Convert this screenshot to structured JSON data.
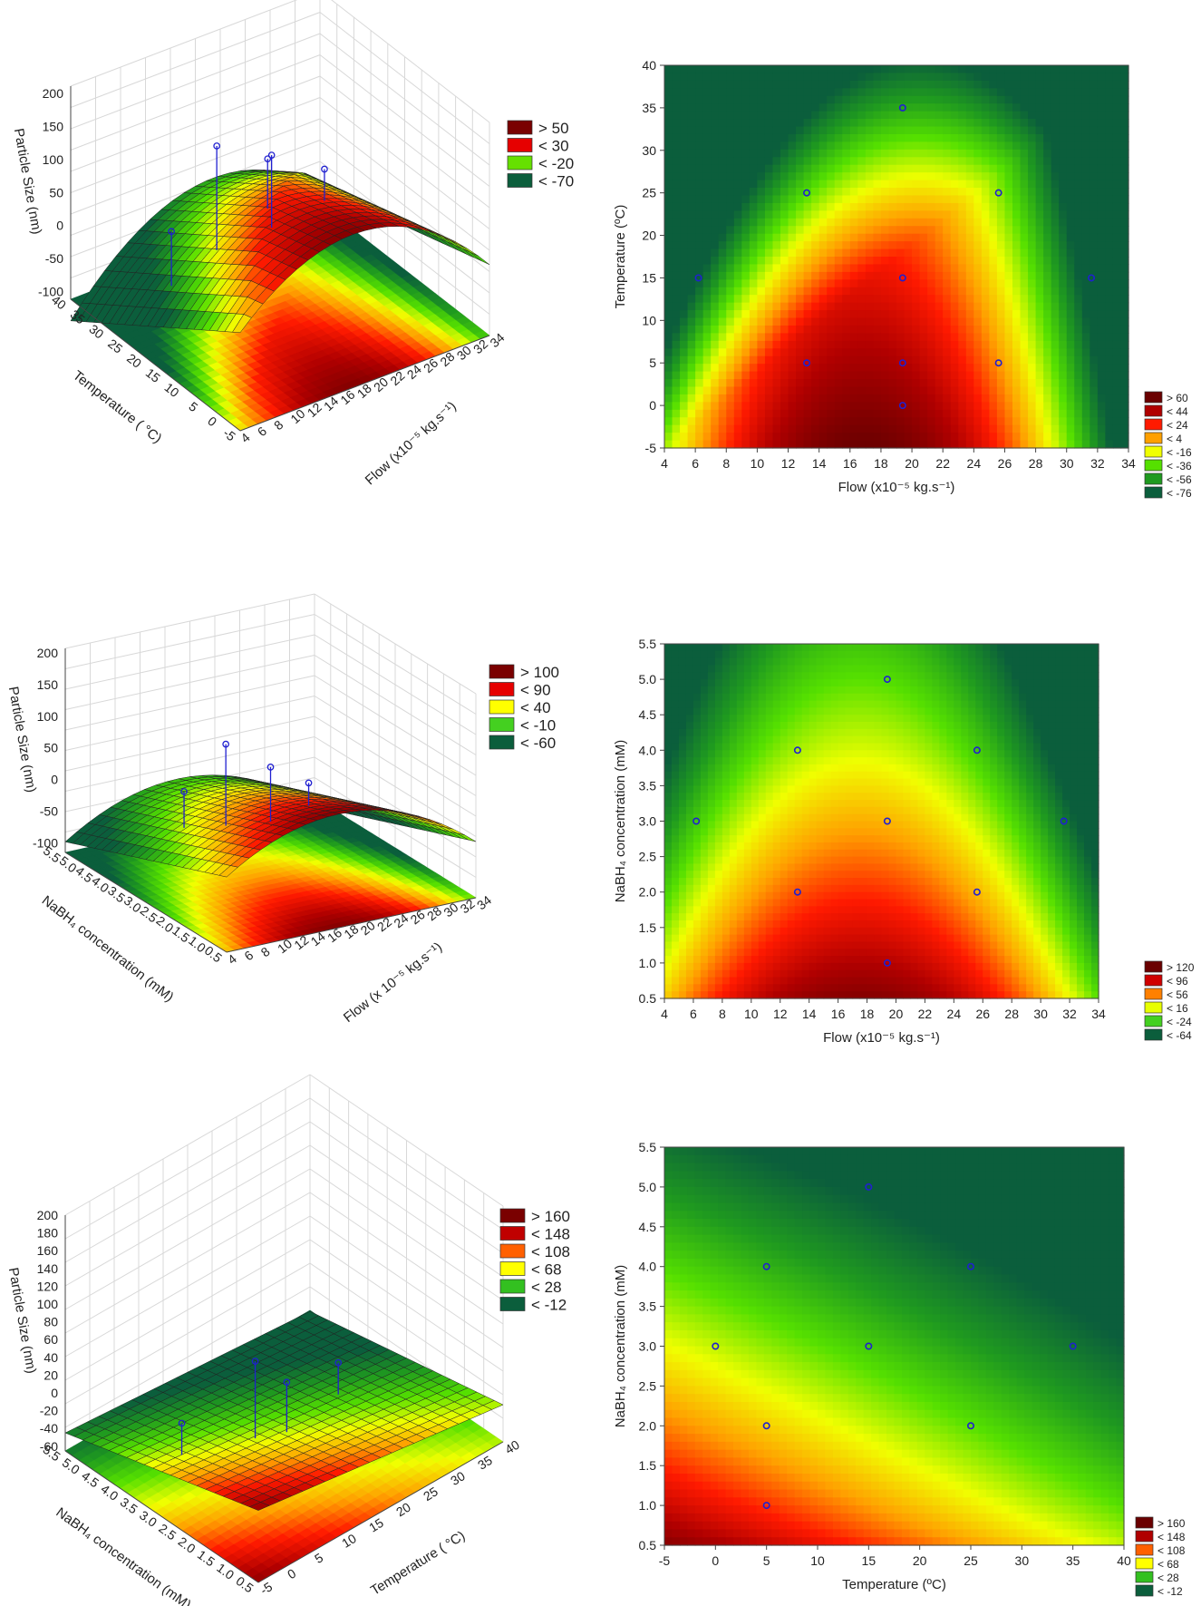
{
  "colors": {
    "dark_red": "#7a0000",
    "red": "#e60000",
    "orange": "#ff7a00",
    "yellow": "#ffff00",
    "light_green": "#66e000",
    "green": "#1f9a1f",
    "dark_green": "#0b5e3c",
    "point": "#2020d0"
  },
  "chart_data": [
    {
      "id": "surf1",
      "type": "surface3d",
      "zlabel": "Particle Size (nm)",
      "xlabel": "Flow (x10⁻⁵ kg.s⁻¹)",
      "ylabel": "Temperature ( °C)",
      "zticks": [
        "200",
        "150",
        "100",
        "50",
        "0",
        "-50",
        "-100"
      ],
      "xticks": [
        "4",
        "6",
        "8",
        "10",
        "12",
        "14",
        "16",
        "18",
        "20",
        "22",
        "24",
        "26",
        "28",
        "30",
        "32",
        "34"
      ],
      "yticks": [
        "40",
        "35",
        "30",
        "25",
        "20",
        "15",
        "10",
        "5",
        "0",
        "-5"
      ],
      "legend": [
        {
          "label": "> 50",
          "color": "#7a0000"
        },
        {
          "label": "< 30",
          "color": "#e60000"
        },
        {
          "label": "< -20",
          "color": "#66e000"
        },
        {
          "label": "< -70",
          "color": "#0b5e3c"
        }
      ]
    },
    {
      "id": "cont1",
      "type": "heatmap",
      "xlabel": "Flow (x10⁻⁵ kg.s⁻¹)",
      "ylabel": "Temperature (ºC)",
      "xlim": [
        4,
        34
      ],
      "ylim": [
        -5,
        40
      ],
      "xticks": [
        "4",
        "6",
        "8",
        "10",
        "12",
        "14",
        "16",
        "18",
        "20",
        "22",
        "24",
        "26",
        "28",
        "30",
        "32",
        "34"
      ],
      "yticks": [
        "-5",
        "0",
        "5",
        "10",
        "15",
        "20",
        "25",
        "30",
        "35",
        "40"
      ],
      "points": [
        [
          6.2,
          15
        ],
        [
          13.2,
          25
        ],
        [
          13.2,
          5
        ],
        [
          19.4,
          35
        ],
        [
          19.4,
          15
        ],
        [
          19.4,
          5
        ],
        [
          19.4,
          0
        ],
        [
          25.6,
          25
        ],
        [
          25.6,
          5
        ],
        [
          31.6,
          15
        ]
      ],
      "legend": [
        {
          "label": "> 60",
          "color": "#6a0000"
        },
        {
          "label": "< 44",
          "color": "#b00000"
        },
        {
          "label": "< 24",
          "color": "#ff1a00"
        },
        {
          "label": "< 4",
          "color": "#ffa000"
        },
        {
          "label": "< -16",
          "color": "#f0ff00"
        },
        {
          "label": "< -36",
          "color": "#55e000"
        },
        {
          "label": "< -56",
          "color": "#1f9a1f"
        },
        {
          "label": "< -76",
          "color": "#0b5e3c"
        }
      ]
    },
    {
      "id": "surf2",
      "type": "surface3d",
      "zlabel": "Particle Size (nm)",
      "xlabel": "Flow (x 10⁻⁵ kg.s⁻¹)",
      "ylabel": "NaBH₄ concentration (mM)",
      "zticks": [
        "200",
        "150",
        "100",
        "50",
        "0",
        "-50",
        "-100"
      ],
      "xticks": [
        "4",
        "6",
        "8",
        "10",
        "12",
        "14",
        "16",
        "18",
        "20",
        "22",
        "24",
        "26",
        "28",
        "30",
        "32",
        "34"
      ],
      "yticks": [
        "5.5",
        "5.0",
        "4.5",
        "4.0",
        "3.5",
        "3.0",
        "2.5",
        "2.0",
        "1.5",
        "1.0",
        "0.5"
      ],
      "legend": [
        {
          "label": "> 100",
          "color": "#7a0000"
        },
        {
          "label": "< 90",
          "color": "#e60000"
        },
        {
          "label": "< 40",
          "color": "#ffff00"
        },
        {
          "label": "< -10",
          "color": "#44d020"
        },
        {
          "label": "< -60",
          "color": "#0b5e3c"
        }
      ]
    },
    {
      "id": "cont2",
      "type": "heatmap",
      "xlabel": "Flow (x10⁻⁵ kg.s⁻¹)",
      "ylabel": "NaBH₄ concentration (mM)",
      "xlim": [
        4,
        34
      ],
      "ylim": [
        0.5,
        5.5
      ],
      "xticks": [
        "4",
        "6",
        "8",
        "10",
        "12",
        "14",
        "16",
        "18",
        "20",
        "22",
        "24",
        "26",
        "28",
        "30",
        "32",
        "34"
      ],
      "yticks": [
        "0.5",
        "1.0",
        "1.5",
        "2.0",
        "2.5",
        "3.0",
        "3.5",
        "4.0",
        "4.5",
        "5.0",
        "5.5"
      ],
      "points": [
        [
          6.2,
          3
        ],
        [
          13.2,
          4
        ],
        [
          13.2,
          2
        ],
        [
          19.4,
          5
        ],
        [
          19.4,
          3
        ],
        [
          19.4,
          1
        ],
        [
          25.6,
          4
        ],
        [
          25.6,
          2
        ],
        [
          31.6,
          3
        ]
      ],
      "legend": [
        {
          "label": "> 120",
          "color": "#6a0000"
        },
        {
          "label": "< 96",
          "color": "#d00000"
        },
        {
          "label": "< 56",
          "color": "#ff8000"
        },
        {
          "label": "< 16",
          "color": "#e8ff00"
        },
        {
          "label": "< -24",
          "color": "#44d020"
        },
        {
          "label": "< -64",
          "color": "#0b5e3c"
        }
      ]
    },
    {
      "id": "surf3",
      "type": "surface3d",
      "zlabel": "Particle Size (nm)",
      "xlabel": "Temperature ( °C)",
      "ylabel": "NaBH₄ concentration (mM)",
      "zticks": [
        "200",
        "180",
        "160",
        "140",
        "120",
        "100",
        "80",
        "60",
        "40",
        "20",
        "0",
        "-20",
        "-40",
        "-60"
      ],
      "xticks": [
        "-5",
        "0",
        "5",
        "10",
        "15",
        "20",
        "25",
        "30",
        "35",
        "40"
      ],
      "yticks": [
        "5.5",
        "5.0",
        "4.5",
        "4.0",
        "3.5",
        "3.0",
        "2.5",
        "2.0",
        "1.5",
        "1.0",
        "0.5"
      ],
      "legend": [
        {
          "label": "> 160",
          "color": "#7a0000"
        },
        {
          "label": "< 148",
          "color": "#c00000"
        },
        {
          "label": "< 108",
          "color": "#ff6000"
        },
        {
          "label": "< 68",
          "color": "#ffff00"
        },
        {
          "label": "< 28",
          "color": "#33c020"
        },
        {
          "label": "< -12",
          "color": "#0b5e3c"
        }
      ]
    },
    {
      "id": "cont3",
      "type": "heatmap",
      "xlabel": "Temperature (ºC)",
      "ylabel": "NaBH₄ concentration (mM)",
      "xlim": [
        -5,
        40
      ],
      "ylim": [
        0.5,
        5.5
      ],
      "xticks": [
        "-5",
        "0",
        "5",
        "10",
        "15",
        "20",
        "25",
        "30",
        "35",
        "40"
      ],
      "yticks": [
        "0.5",
        "1.0",
        "1.5",
        "2.0",
        "2.5",
        "3.0",
        "3.5",
        "4.0",
        "4.5",
        "5.0",
        "5.5"
      ],
      "points": [
        [
          0,
          3
        ],
        [
          5,
          4
        ],
        [
          5,
          2
        ],
        [
          5,
          1
        ],
        [
          15,
          5
        ],
        [
          15,
          3
        ],
        [
          25,
          4
        ],
        [
          25,
          2
        ],
        [
          35,
          3
        ]
      ],
      "legend": [
        {
          "label": "> 160",
          "color": "#6a0000"
        },
        {
          "label": "< 148",
          "color": "#b00000"
        },
        {
          "label": "< 108",
          "color": "#ff6000"
        },
        {
          "label": "< 68",
          "color": "#ffff00"
        },
        {
          "label": "< 28",
          "color": "#33c020"
        },
        {
          "label": "< -12",
          "color": "#0b5e3c"
        }
      ]
    }
  ]
}
